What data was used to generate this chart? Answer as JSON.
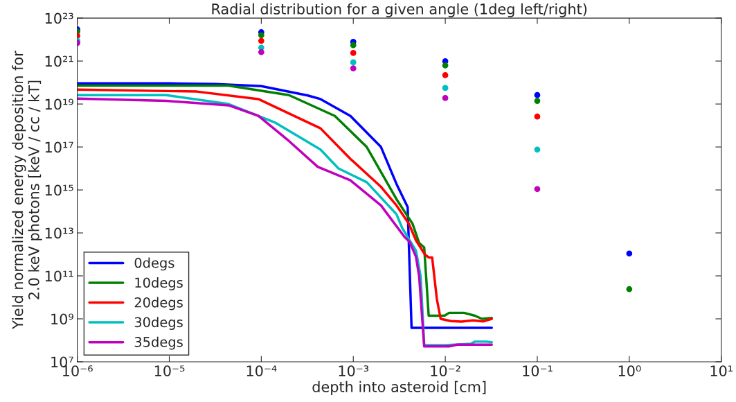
{
  "chart_data": {
    "type": "line",
    "title": "Radial distribution for a given angle (1deg left/right)",
    "xlabel": "depth into asteroid [cm]",
    "ylabel": "Yield normalized energy deposition for\n2.0 keV photons [keV / cc / kT]",
    "log": "xy",
    "grid": false,
    "legend": "bottom left",
    "line_style": "solid",
    "xlim": [
      1e-06,
      10
    ],
    "ylim": [
      10000000.0,
      1e+23
    ],
    "xticks": [
      {
        "value": 1e-06,
        "label": "10⁻⁶"
      },
      {
        "value": 1e-05,
        "label": "10⁻⁵"
      },
      {
        "value": 0.0001,
        "label": "10⁻⁴"
      },
      {
        "value": 0.001,
        "label": "10⁻³"
      },
      {
        "value": 0.01,
        "label": "10⁻²"
      },
      {
        "value": 0.1,
        "label": "10⁻¹"
      },
      {
        "value": 1,
        "label": "10⁰"
      },
      {
        "value": 10,
        "label": "10¹"
      }
    ],
    "yticks": [
      {
        "value": 10000000.0,
        "label": "10⁷"
      },
      {
        "value": 1000000000.0,
        "label": "10⁹"
      },
      {
        "value": 100000000000.0,
        "label": "10¹¹"
      },
      {
        "value": 10000000000000.0,
        "label": "10¹³"
      },
      {
        "value": 1000000000000000.0,
        "label": "10¹⁵"
      },
      {
        "value": 1e+17,
        "label": "10¹⁷"
      },
      {
        "value": 1e+19,
        "label": "10¹⁹"
      },
      {
        "value": 1e+21,
        "label": "10²¹"
      },
      {
        "value": 1e+23,
        "label": "10²³"
      }
    ],
    "series": [
      {
        "name": "0degs",
        "color": "#0000ff",
        "x": [
          1e-06,
          1e-05,
          3.2e-05,
          0.0001,
          0.00032,
          0.00044,
          0.00093,
          0.002,
          0.00295,
          0.0039,
          0.0043,
          0.032
        ],
        "values": [
          9.1e+19,
          9.1e+19,
          8.5e+19,
          6.8e+19,
          2.5e+19,
          1.7e+19,
          2.8e+18,
          1e+17,
          1900000000000000.0,
          160000000000000.0,
          380000000.0,
          380000000.0
        ]
      },
      {
        "name": "10degs",
        "color": "#008000",
        "x": [
          1e-06,
          4.4e-05,
          0.0002,
          0.00063,
          0.0014,
          0.00295,
          0.0044,
          0.0052,
          0.0059,
          0.0066,
          0.0098,
          0.011,
          0.016,
          0.021,
          0.025,
          0.032
        ],
        "values": [
          7.2e+19,
          7.2e+19,
          2.6e+19,
          2.8e+18,
          1e+17,
          370000000000000.0,
          27000000000000.0,
          3400000000000.0,
          2100000000000.0,
          1400000000.0,
          1400000000.0,
          1900000000.0,
          1900000000.0,
          1400000000.0,
          1000000000.0,
          1100000000.0
        ]
      },
      {
        "name": "20degs",
        "color": "#ff0000",
        "x": [
          1e-06,
          2e-05,
          9.3e-05,
          0.00044,
          0.00093,
          0.002,
          0.00295,
          0.004,
          0.0048,
          0.006,
          0.0066,
          0.0072,
          0.0081,
          0.0089,
          0.0115,
          0.015,
          0.02,
          0.026,
          0.032
        ],
        "values": [
          4.7e+19,
          3.8e+19,
          1.7e+19,
          7.4e+17,
          2.8e+16,
          1400000000000000.0,
          190000000000000.0,
          28000000000000.0,
          4500000000000.0,
          1000000000000.0,
          720000000000.0,
          720000000000.0,
          8300000000.0,
          1000000000.0,
          790000000.0,
          740000000.0,
          850000000.0,
          760000000.0,
          1000000000.0
        ]
      },
      {
        "name": "30degs",
        "color": "#00bfbf",
        "x": [
          1e-06,
          9.3e-06,
          4.4e-05,
          0.00014,
          0.00044,
          0.00069,
          0.0014,
          0.00295,
          0.0034,
          0.0048,
          0.0054,
          0.0059,
          0.01,
          0.019,
          0.021,
          0.028,
          0.032
        ],
        "values": [
          2.6e+19,
          2.6e+19,
          1e+19,
          1.4e+18,
          7.6e+16,
          1e+16,
          2300000000000000.0,
          74000000000000.0,
          17000000000000.0,
          1500000000000.0,
          95000000000.0,
          60000000.0,
          60000000.0,
          69000000.0,
          87000000.0,
          87000000.0,
          81000000.0
        ]
      },
      {
        "name": "35degs",
        "color": "#bf00bf",
        "x": [
          1e-06,
          9.3e-06,
          4.4e-05,
          9.3e-05,
          0.0002,
          0.00041,
          0.00093,
          0.002,
          0.0036,
          0.0041,
          0.0048,
          0.0052,
          0.0059,
          0.011,
          0.0135,
          0.032
        ],
        "values": [
          1.8e+19,
          1.4e+19,
          8.7e+18,
          2.8e+18,
          1.9e+17,
          1.2e+16,
          2800000000000000.0,
          190000000000000.0,
          6500000000000.0,
          3800000000000.0,
          780000000000.0,
          95000000000.0,
          52000000.0,
          52000000.0,
          63000000.0,
          63000000.0
        ]
      },
      {
        "type": "scatter",
        "color": "#0000ff",
        "x": [
          1e-06,
          0.0001,
          0.001,
          0.01,
          0.1,
          1
        ],
        "values": [
          3e+22,
          2.2e+22,
          7.8e+21,
          9.8e+20,
          2.6e+19,
          1100000000000.0
        ]
      },
      {
        "type": "scatter",
        "color": "#008000",
        "x": [
          1e-06,
          0.0001,
          0.001,
          0.01,
          0.1,
          1
        ],
        "values": [
          2.4e+22,
          1.6e+22,
          5.5e+21,
          6.3e+20,
          1.4e+19,
          24000000000.0
        ]
      },
      {
        "type": "scatter",
        "color": "#ff0000",
        "x": [
          1e-06,
          0.0001,
          0.001,
          0.01,
          0.1
        ],
        "values": [
          1.5e+22,
          8.7e+21,
          2.4e+21,
          2.2e+20,
          2.6e+18
        ]
      },
      {
        "type": "scatter",
        "color": "#00bfbf",
        "x": [
          1e-06,
          0.0001,
          0.001,
          0.01,
          0.1
        ],
        "values": [
          9e+21,
          4.2e+21,
          8.7e+20,
          5.6e+19,
          7.6e+16
        ]
      },
      {
        "type": "scatter",
        "color": "#bf00bf",
        "x": [
          1e-06,
          0.0001,
          0.001,
          0.01,
          0.1
        ],
        "values": [
          7e+21,
          2.6e+21,
          4.6e+20,
          1.9e+19,
          1100000000000000.0
        ]
      }
    ]
  }
}
